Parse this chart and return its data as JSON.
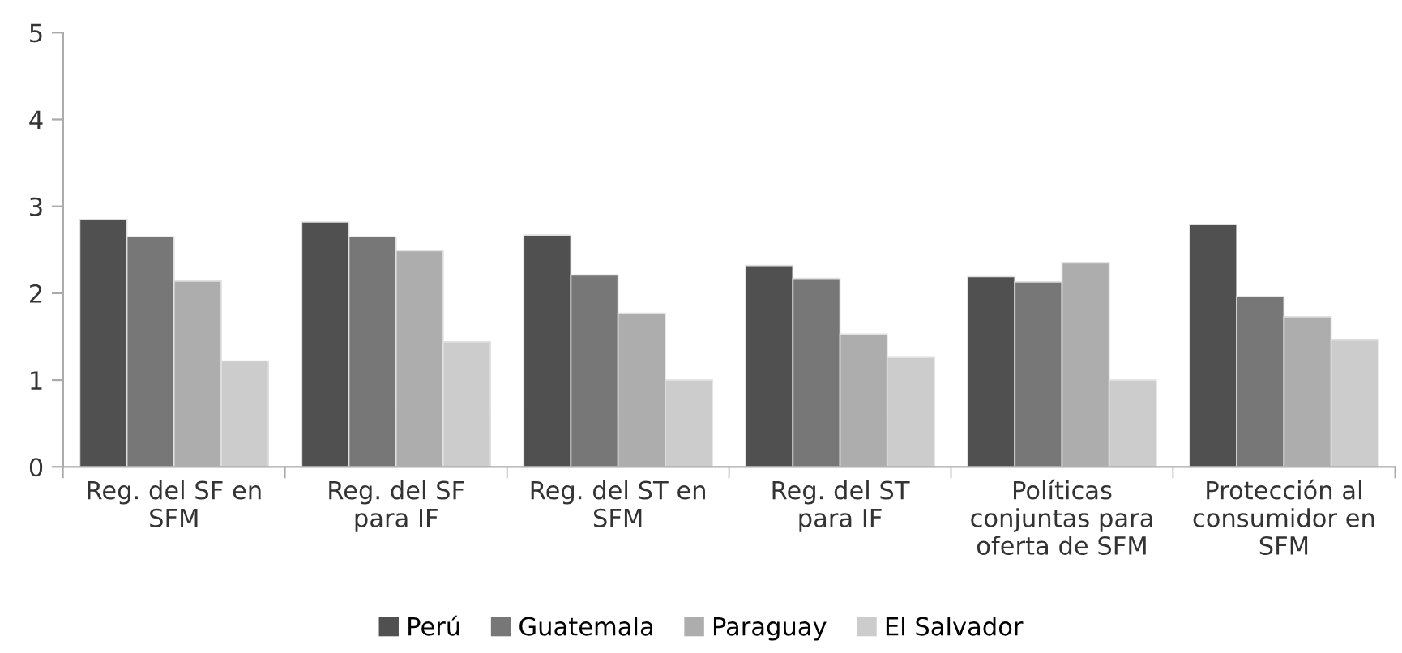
{
  "chart_data": {
    "type": "bar",
    "categories": [
      "Reg. del SF en\nSFM",
      "Reg. del SF\npara IF",
      "Reg. del ST en\nSFM",
      "Reg. del ST\npara IF",
      "Políticas\nconjuntas para\noferta de SFM",
      "Protección al\nconsumidor en\nSFM"
    ],
    "series": [
      {
        "name": "Perú",
        "color": "#505050",
        "values": [
          2.85,
          2.82,
          2.67,
          2.32,
          2.19,
          2.79
        ]
      },
      {
        "name": "Guatemala",
        "color": "#777777",
        "values": [
          2.65,
          2.65,
          2.21,
          2.17,
          2.13,
          1.96
        ]
      },
      {
        "name": "Paraguay",
        "color": "#adadad",
        "values": [
          2.14,
          2.49,
          1.77,
          1.53,
          2.35,
          1.73
        ]
      },
      {
        "name": "El Salvador",
        "color": "#cccccc",
        "values": [
          1.22,
          1.44,
          1.0,
          1.26,
          1.0,
          1.46
        ]
      }
    ],
    "ylim": [
      0,
      5
    ],
    "yticks": [
      0,
      1,
      2,
      3,
      4,
      5
    ],
    "grid": false,
    "legend": "bottom"
  }
}
